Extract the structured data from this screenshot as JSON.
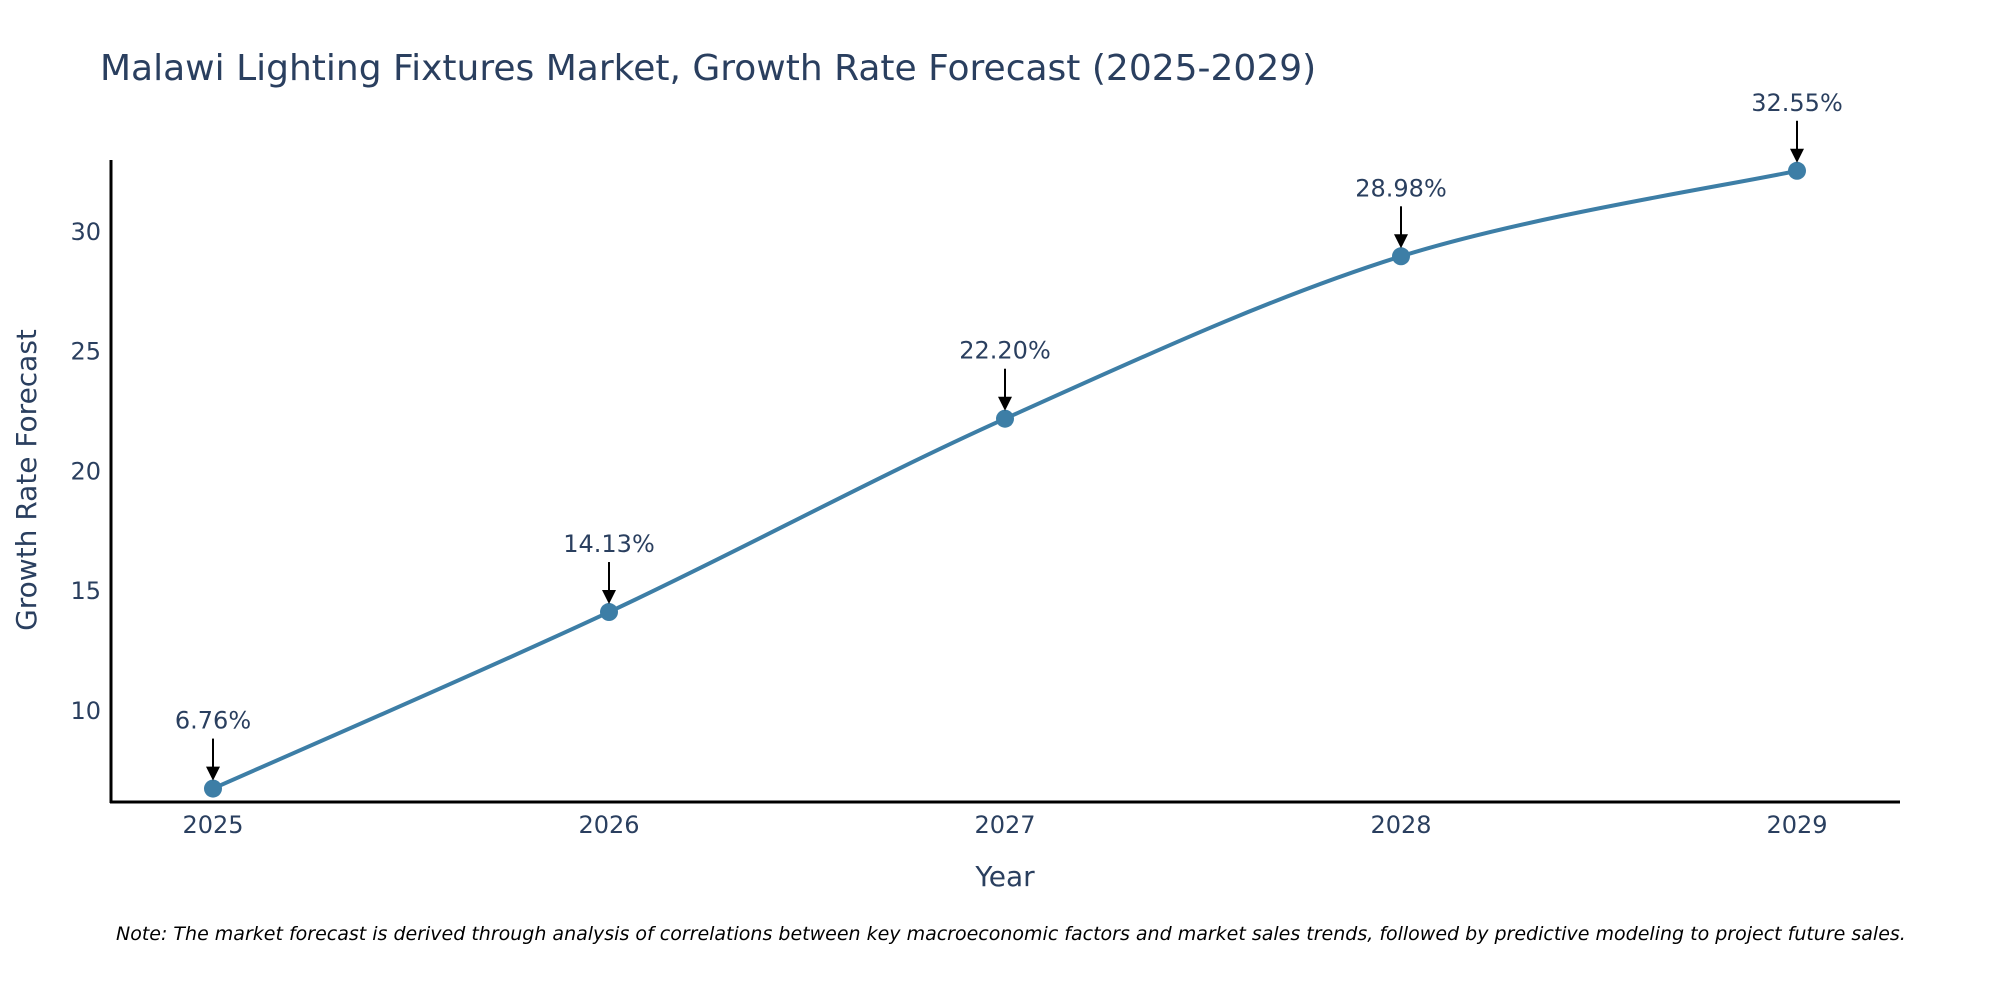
{
  "chart_data": {
    "type": "line",
    "title": "Malawi Lighting Fixtures Market, Growth Rate Forecast (2025-2029)",
    "xlabel": "Year",
    "ylabel": "Growth Rate Forecast",
    "categories": [
      "2025",
      "2026",
      "2027",
      "2028",
      "2029"
    ],
    "values": [
      6.76,
      14.13,
      22.2,
      28.98,
      32.55
    ],
    "data_labels": [
      "6.76%",
      "14.13%",
      "22.20%",
      "28.98%",
      "32.55%"
    ],
    "yticks": [
      10,
      15,
      20,
      25,
      30
    ],
    "ylim": [
      6.2,
      33.0
    ],
    "grid": false,
    "line_shape": "spline",
    "colors": {
      "line": "#3d7ea6",
      "marker": "#3d7ea6",
      "text": "#2a3f5f",
      "axis": "#000000",
      "arrow": "#000000"
    },
    "note": "Note: The market forecast is derived through analysis of correlations between key macroeconomic factors and market sales trends, followed by predictive modeling to project future sales."
  }
}
